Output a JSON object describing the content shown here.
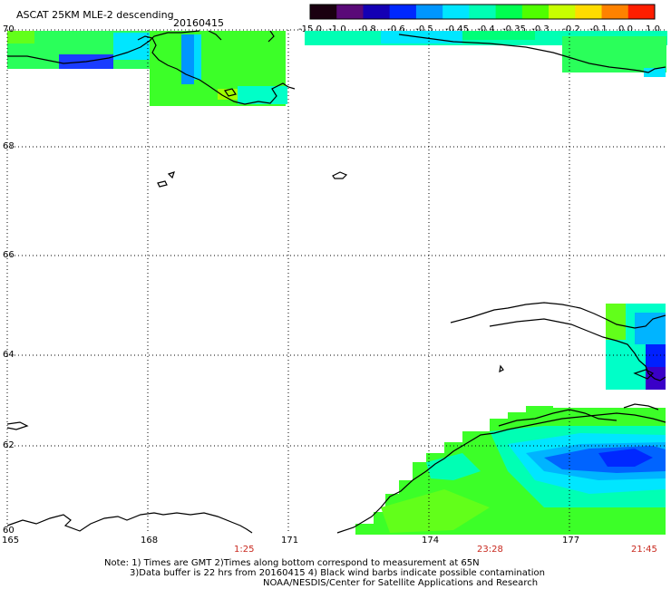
{
  "header": {
    "title": "ASCAT 25KM MLE-2 descending",
    "date": "20160415"
  },
  "colorbar": {
    "labels": [
      "-15.0",
      "-1.0",
      "-0.8",
      "-0.6",
      "-0.5",
      "-0.45",
      "-0.4",
      "-0.35",
      "-0.3",
      "-0.2",
      "-0.1",
      "0.0",
      "1.0"
    ],
    "colors": [
      "#1a0010",
      "#5a0a78",
      "#1400b4",
      "#0028ff",
      "#0096ff",
      "#00e6ff",
      "#00ffb4",
      "#00ff50",
      "#50ff00",
      "#c8ff00",
      "#ffdc00",
      "#ff8200",
      "#ff1e00"
    ]
  },
  "axes": {
    "lat_labels": [
      "70",
      "68",
      "66",
      "64",
      "62",
      "60"
    ],
    "lon_labels": [
      "165",
      "168",
      "171",
      "174",
      "177"
    ]
  },
  "pass_times": [
    "1:25",
    "23:28",
    "21:45"
  ],
  "notes": {
    "line1": "Note: 1) Times are GMT 2)Times along bottom correspond to measurement at 65N",
    "line2": "3)Data buffer is 22 hrs from 20160415 4) Black wind barbs indicate possible contamination",
    "line3": "NOAA/NESDIS/Center for Satellite Applications and Research"
  }
}
